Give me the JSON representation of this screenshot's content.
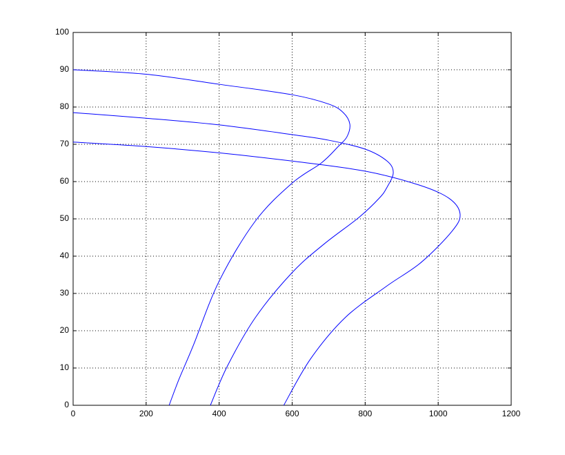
{
  "chart_data": {
    "type": "line",
    "grid": true,
    "xlim": [
      0,
      1200
    ],
    "xticks": [
      0,
      200,
      400,
      600,
      800,
      1000,
      1200
    ],
    "ylim": [
      0,
      100
    ],
    "yticks": [
      0,
      10,
      20,
      30,
      40,
      50,
      60,
      70,
      80,
      90,
      100
    ],
    "series": [
      {
        "color": "#0000ff",
        "x": [
          0,
          200,
          400,
          600,
          700,
          740,
          758,
          750,
          726,
          680,
          600,
          499,
          400,
          329,
          290,
          263
        ],
        "values": [
          90,
          88.8,
          86.1,
          83.3,
          80.8,
          78.5,
          75.4,
          72,
          69.4,
          65,
          59.6,
          49.4,
          33.3,
          16,
          7,
          0
        ]
      },
      {
        "color": "#0000ff",
        "x": [
          0,
          200,
          400,
          600,
          700,
          800,
          860,
          877,
          860,
          839,
          783,
          688,
          600,
          499,
          423,
          376
        ],
        "values": [
          78.5,
          77,
          75.2,
          72.6,
          71.1,
          68.7,
          65.5,
          62.4,
          58.5,
          55.6,
          50.4,
          43.3,
          35.6,
          23.5,
          10.6,
          0
        ]
      },
      {
        "color": "#0000ff",
        "x": [
          0,
          200,
          400,
          600,
          800,
          950,
          1030,
          1060,
          1038,
          953,
          858,
          745,
          650,
          577
        ],
        "values": [
          70.6,
          69.4,
          67.7,
          65.5,
          62.8,
          59,
          55.5,
          51.3,
          46.7,
          38.3,
          31.9,
          23.5,
          12.4,
          0
        ]
      }
    ]
  }
}
